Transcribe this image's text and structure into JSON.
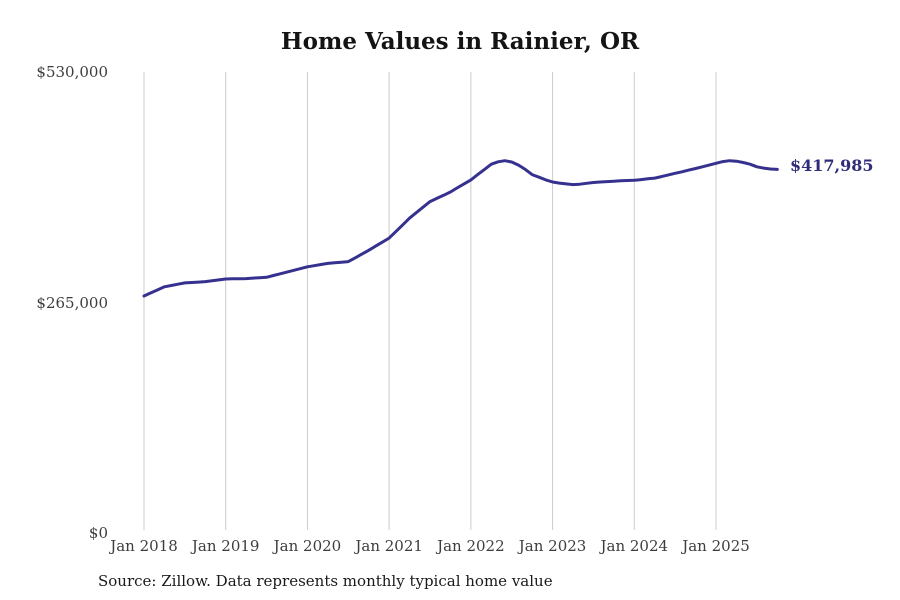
{
  "page": {
    "source_note": "Source: Zillow. Data represents monthly typical home value"
  },
  "chart_data": {
    "type": "line",
    "title": "Home Values in Rainier, OR",
    "xlabel": "",
    "ylabel": "",
    "unit": "USD",
    "frequency": "monthly",
    "start_month": "2018-01",
    "end_month": "2025-10",
    "ylim": [
      0,
      530000
    ],
    "grid": "vertical-only",
    "legend_position": "none",
    "line_color": "#36318f",
    "end_label_color": "#302c7c",
    "gridline_color": "#cccccc",
    "y_ticks": [
      {
        "label": "$530,000",
        "value": 530000
      },
      {
        "label": "$265,000",
        "value": 265000
      },
      {
        "label": "$0",
        "value": 0
      }
    ],
    "x_ticks": [
      {
        "label": "Jan 2018",
        "month_index": 0
      },
      {
        "label": "Jan 2019",
        "month_index": 12
      },
      {
        "label": "Jan 2020",
        "month_index": 24
      },
      {
        "label": "Jan 2021",
        "month_index": 36
      },
      {
        "label": "Jan 2022",
        "month_index": 48
      },
      {
        "label": "Jan 2023",
        "month_index": 60
      },
      {
        "label": "Jan 2024",
        "month_index": 72
      },
      {
        "label": "Jan 2025",
        "month_index": 84
      }
    ],
    "end_label": {
      "text": "$417,985",
      "value": 417985
    },
    "series": [
      {
        "name": "Typical home value",
        "values": [
          272500,
          276000,
          279500,
          283000,
          284500,
          286000,
          287500,
          288000,
          288500,
          289000,
          290000,
          291000,
          292000,
          292200,
          292300,
          292500,
          293000,
          293500,
          294000,
          296000,
          298000,
          300000,
          302000,
          304000,
          306000,
          307300,
          308700,
          310000,
          310700,
          311300,
          312000,
          316300,
          320700,
          325000,
          329700,
          334300,
          339000,
          346700,
          354300,
          362000,
          368300,
          374700,
          381000,
          384700,
          388300,
          392000,
          396700,
          401300,
          406000,
          412000,
          418000,
          424000,
          426800,
          428000,
          426500,
          423000,
          418000,
          412000,
          409000,
          406000,
          403500,
          402300,
          401300,
          400500,
          401000,
          402000,
          403000,
          403500,
          404000,
          404500,
          405000,
          405300,
          405500,
          406300,
          407200,
          408000,
          409800,
          411700,
          413500,
          415300,
          417200,
          419000,
          421000,
          423000,
          425000,
          427000,
          428000,
          427500,
          426000,
          424000,
          421000,
          419500,
          418500,
          417985
        ]
      }
    ]
  }
}
